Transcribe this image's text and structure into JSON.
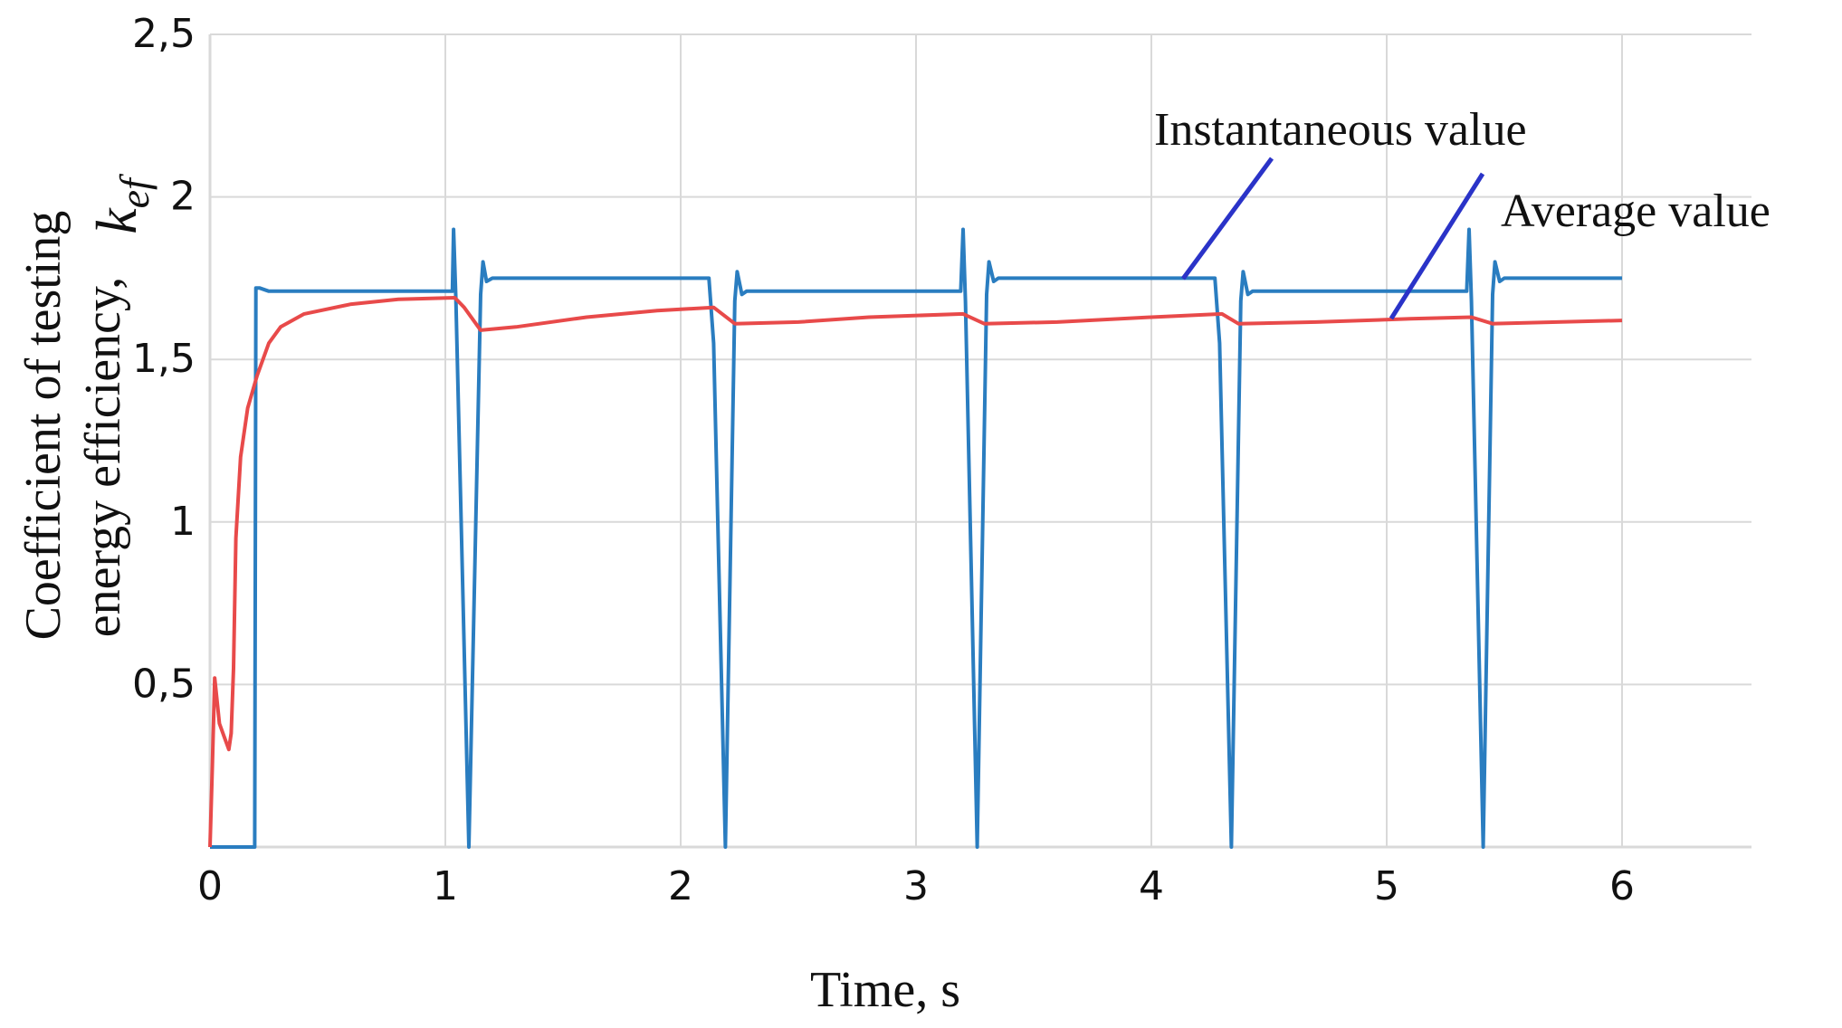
{
  "chart_data": {
    "type": "line",
    "title": "",
    "xlabel": "Time, s",
    "ylabel_lines": [
      "Coefficient of testing",
      "energy efficiency,"
    ],
    "ylabel_symbol": "k",
    "ylabel_symbol_sub": "ef",
    "xlim": [
      0,
      6.55
    ],
    "ylim": [
      0,
      2.5
    ],
    "x_ticks": [
      {
        "value": 0,
        "label": "0"
      },
      {
        "value": 1,
        "label": "1"
      },
      {
        "value": 2,
        "label": "2"
      },
      {
        "value": 3,
        "label": "3"
      },
      {
        "value": 4,
        "label": "4"
      },
      {
        "value": 5,
        "label": "5"
      },
      {
        "value": 6,
        "label": "6"
      }
    ],
    "y_ticks": [
      {
        "value": 0.5,
        "label": "0,5"
      },
      {
        "value": 1,
        "label": "1"
      },
      {
        "value": 1.5,
        "label": "1,5"
      },
      {
        "value": 2,
        "label": "2"
      },
      {
        "value": 2.5,
        "label": "2,5"
      }
    ],
    "grid": true,
    "series": [
      {
        "key": "instantaneous",
        "color": "#2a7dc0",
        "points": [
          [
            0,
            0
          ],
          [
            0.19,
            0
          ],
          [
            0.195,
            1.72
          ],
          [
            0.21,
            1.72
          ],
          [
            0.25,
            1.71
          ],
          [
            1.03,
            1.71
          ],
          [
            1.035,
            1.9
          ],
          [
            1.045,
            1.68
          ],
          [
            1.1,
            0
          ],
          [
            1.15,
            1.7
          ],
          [
            1.16,
            1.8
          ],
          [
            1.175,
            1.74
          ],
          [
            1.2,
            1.75
          ],
          [
            2.12,
            1.75
          ],
          [
            2.14,
            1.55
          ],
          [
            2.19,
            0
          ],
          [
            2.23,
            1.68
          ],
          [
            2.24,
            1.77
          ],
          [
            2.26,
            1.7
          ],
          [
            2.28,
            1.71
          ],
          [
            3.19,
            1.71
          ],
          [
            3.2,
            1.9
          ],
          [
            3.21,
            1.68
          ],
          [
            3.26,
            0
          ],
          [
            3.3,
            1.7
          ],
          [
            3.31,
            1.8
          ],
          [
            3.33,
            1.74
          ],
          [
            3.35,
            1.75
          ],
          [
            4.27,
            1.75
          ],
          [
            4.29,
            1.55
          ],
          [
            4.34,
            0
          ],
          [
            4.38,
            1.68
          ],
          [
            4.39,
            1.77
          ],
          [
            4.41,
            1.7
          ],
          [
            4.43,
            1.71
          ],
          [
            5.34,
            1.71
          ],
          [
            5.35,
            1.9
          ],
          [
            5.36,
            1.68
          ],
          [
            5.41,
            0
          ],
          [
            5.45,
            1.7
          ],
          [
            5.46,
            1.8
          ],
          [
            5.48,
            1.74
          ],
          [
            5.5,
            1.75
          ],
          [
            6.0,
            1.75
          ]
        ]
      },
      {
        "key": "average",
        "color": "#e84a4a",
        "points": [
          [
            0,
            0
          ],
          [
            0.01,
            0.25
          ],
          [
            0.02,
            0.52
          ],
          [
            0.04,
            0.38
          ],
          [
            0.06,
            0.34
          ],
          [
            0.08,
            0.3
          ],
          [
            0.09,
            0.35
          ],
          [
            0.1,
            0.55
          ],
          [
            0.11,
            0.95
          ],
          [
            0.13,
            1.2
          ],
          [
            0.16,
            1.35
          ],
          [
            0.2,
            1.45
          ],
          [
            0.25,
            1.55
          ],
          [
            0.3,
            1.6
          ],
          [
            0.4,
            1.64
          ],
          [
            0.6,
            1.67
          ],
          [
            0.8,
            1.685
          ],
          [
            1.04,
            1.69
          ],
          [
            1.08,
            1.66
          ],
          [
            1.15,
            1.59
          ],
          [
            1.3,
            1.6
          ],
          [
            1.6,
            1.63
          ],
          [
            1.9,
            1.65
          ],
          [
            2.14,
            1.66
          ],
          [
            2.23,
            1.61
          ],
          [
            2.5,
            1.615
          ],
          [
            2.8,
            1.63
          ],
          [
            3.2,
            1.64
          ],
          [
            3.29,
            1.61
          ],
          [
            3.6,
            1.615
          ],
          [
            4.0,
            1.63
          ],
          [
            4.3,
            1.64
          ],
          [
            4.37,
            1.61
          ],
          [
            4.7,
            1.615
          ],
          [
            5.1,
            1.625
          ],
          [
            5.36,
            1.63
          ],
          [
            5.45,
            1.61
          ],
          [
            6.0,
            1.62
          ]
        ]
      }
    ],
    "annotations": [
      {
        "text": "Instantaneous value",
        "series": "instantaneous"
      },
      {
        "text": "Average value",
        "series": "average"
      }
    ]
  }
}
